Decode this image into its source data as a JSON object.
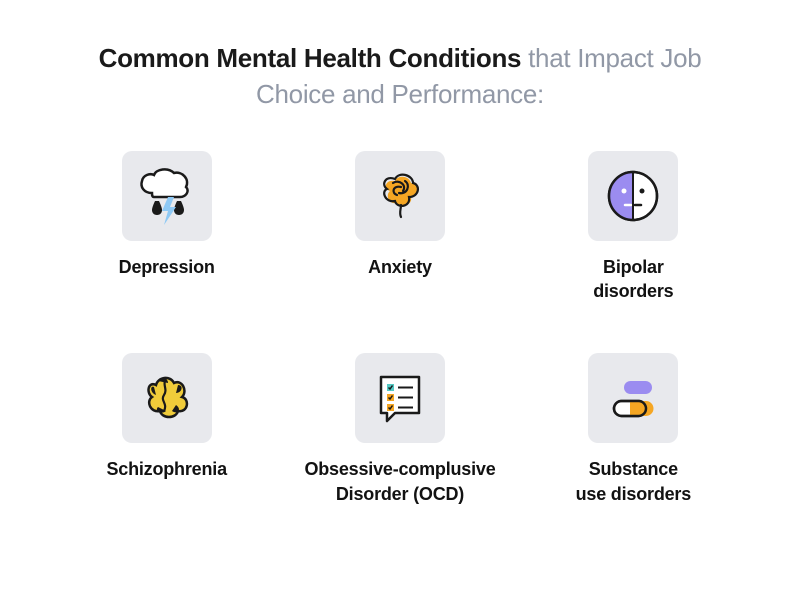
{
  "title": {
    "bold": "Common Mental Health Conditions",
    "light": " that Impact Job Choice and Performance:",
    "bold_color": "#1a1a1a",
    "light_color": "#9198a6",
    "fontsize": 26
  },
  "layout": {
    "type": "infographic",
    "grid": "3x2",
    "background_color": "#ffffff",
    "icon_box_bg": "#e8e9ed",
    "icon_box_size": 90,
    "icon_box_radius": 10,
    "label_color": "#121212",
    "label_fontsize": 18
  },
  "palette": {
    "orange": "#f5a623",
    "purple": "#9b8cf0",
    "blue": "#8ec9f5",
    "teal": "#54c9c5",
    "stroke": "#1a1a1a",
    "white": "#ffffff"
  },
  "items": [
    {
      "id": "depression",
      "label": "Depression",
      "icon": "cloud-rain-bolt"
    },
    {
      "id": "anxiety",
      "label": "Anxiety",
      "icon": "tangled-brain"
    },
    {
      "id": "bipolar",
      "label": "Bipolar\ndisorders",
      "icon": "two-face"
    },
    {
      "id": "schizophrenia",
      "label": "Schizophrenia",
      "icon": "cracked-brain"
    },
    {
      "id": "ocd",
      "label": "Obsessive-complusive\nDisorder (OCD)",
      "icon": "checklist-bubble"
    },
    {
      "id": "substance",
      "label": "Substance\nuse disorders",
      "icon": "pills"
    }
  ]
}
